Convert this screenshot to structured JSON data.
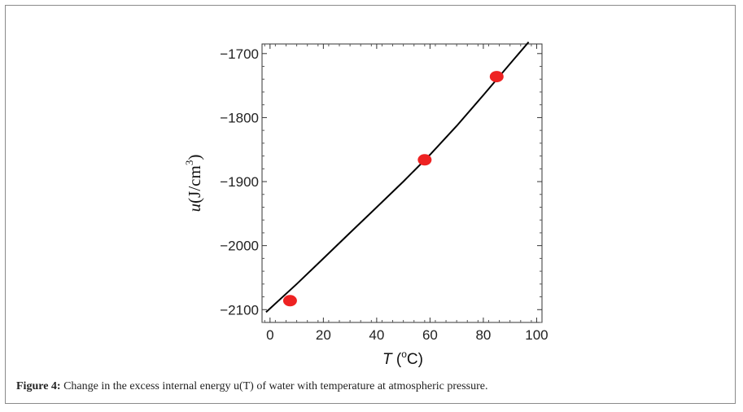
{
  "figure": {
    "caption_label": "Figure 4:",
    "caption_text": " Change in the excess internal energy u(T) of water with temperature at atmospheric pressure."
  },
  "chart_data": {
    "type": "scatter",
    "title": "",
    "xlabel": {
      "var": "T",
      "pre": " (",
      "sup": "o",
      "post": "C)"
    },
    "ylabel": {
      "var": "u",
      "pre": "(J/cm",
      "sup": "3",
      "post": ")"
    },
    "xlim": [
      -3,
      102
    ],
    "ylim": [
      -2120,
      -1685
    ],
    "x_ticks": [
      0,
      20,
      40,
      60,
      80,
      100
    ],
    "x_tick_labels": [
      "0",
      "20",
      "40",
      "60",
      "80",
      "100"
    ],
    "y_ticks": [
      -2100,
      -2000,
      -1900,
      -1800,
      -1700
    ],
    "y_tick_labels": [
      "−2100",
      "−2000",
      "−1900",
      "−1800",
      "−1700"
    ],
    "grid": false,
    "series": [
      {
        "kind": "points",
        "color": "#ee2222",
        "points": [
          {
            "x": 7.5,
            "y": -2086
          },
          {
            "x": 58,
            "y": -1866
          },
          {
            "x": 85,
            "y": -1736
          }
        ]
      },
      {
        "kind": "line",
        "color": "#000000",
        "points": [
          {
            "x": -1.5,
            "y": -2104
          },
          {
            "x": 10,
            "y": -2060
          },
          {
            "x": 20,
            "y": -2020
          },
          {
            "x": 30,
            "y": -1980
          },
          {
            "x": 40,
            "y": -1940
          },
          {
            "x": 50,
            "y": -1900
          },
          {
            "x": 60,
            "y": -1858
          },
          {
            "x": 70,
            "y": -1813
          },
          {
            "x": 80,
            "y": -1765
          },
          {
            "x": 90,
            "y": -1716
          },
          {
            "x": 97,
            "y": -1682
          }
        ]
      }
    ]
  }
}
